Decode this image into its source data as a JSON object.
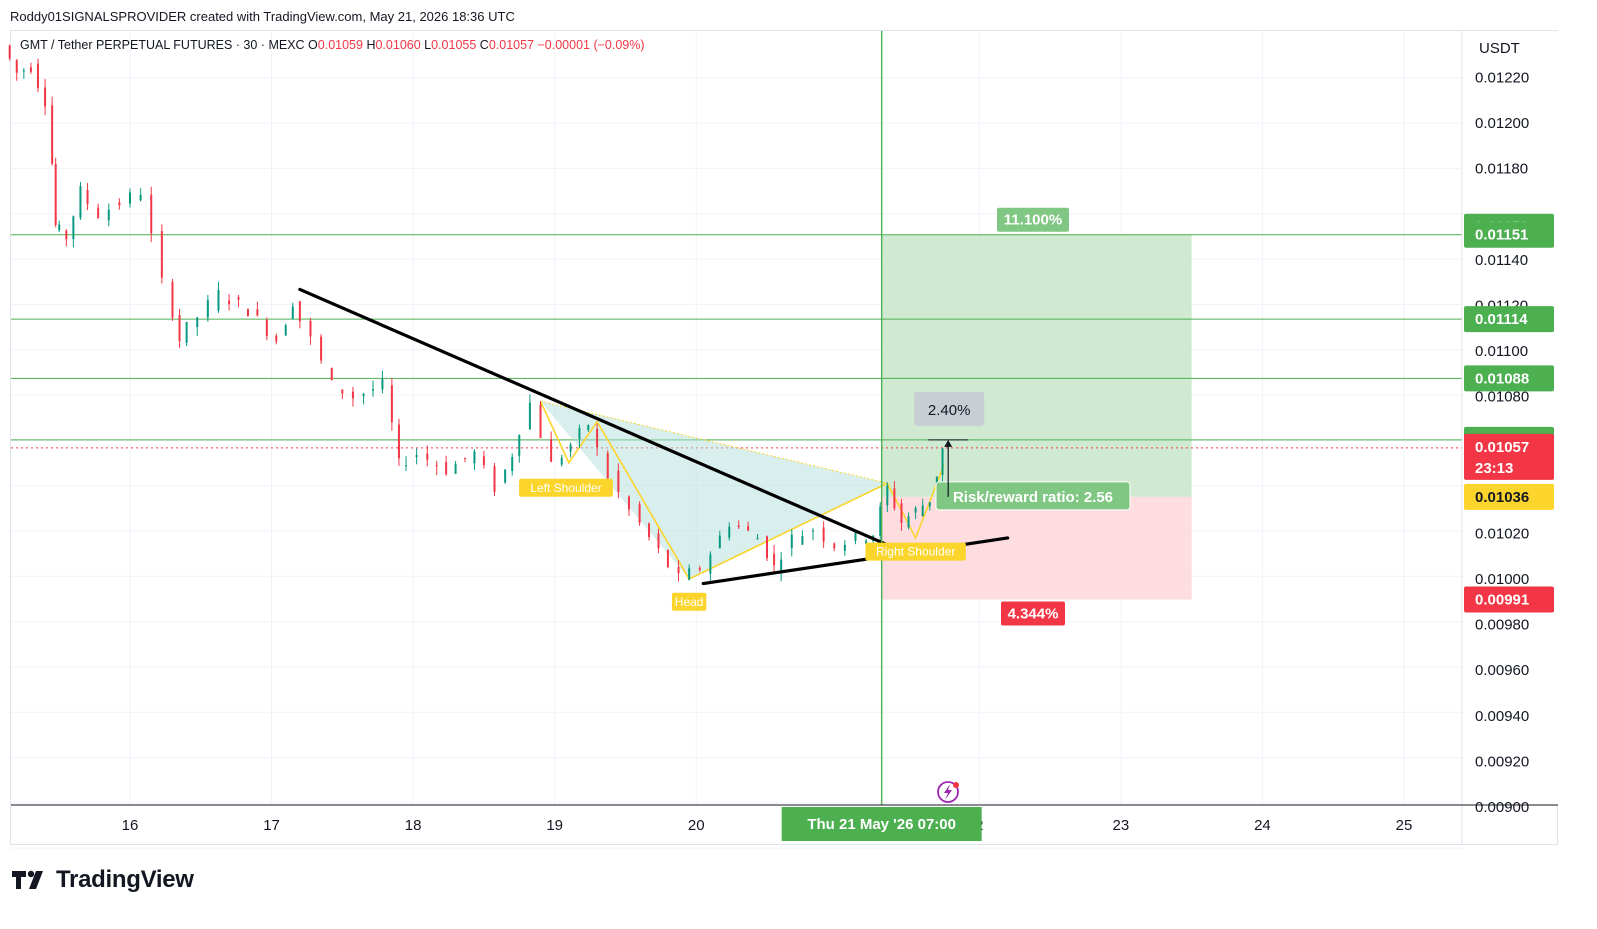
{
  "header": {
    "credit": "Roddy01SIGNALSPROVIDER created with TradingView.com, May 21, 2026 18:36 UTC"
  },
  "symbol": {
    "name": "GMT / Tether PERPETUAL FUTURES · 30 · MEXC",
    "o_label": "O",
    "o": "0.01059",
    "h_label": "H",
    "h": "0.01060",
    "l_label": "L",
    "l": "0.01055",
    "c_label": "C",
    "c": "0.01057",
    "change": "−0.00001 (−0.09%)"
  },
  "colors": {
    "up": "#089981",
    "down": "#f23645",
    "green_line": "#4caf50",
    "gold": "#fbd52c",
    "profit_zone": "#c8e6c9",
    "loss_zone": "#fdd7db"
  },
  "chart_data": {
    "type": "line",
    "title": "",
    "xlabel": "",
    "ylabel": "",
    "currency": "USDT",
    "ylim": [
      0.009,
      0.01235
    ],
    "x_ticks": [
      {
        "label": "16",
        "day": 16
      },
      {
        "label": "17",
        "day": 17
      },
      {
        "label": "18",
        "day": 18
      },
      {
        "label": "19",
        "day": 19
      },
      {
        "label": "20",
        "day": 20
      },
      {
        "label": "2",
        "day": 22
      },
      {
        "label": "23",
        "day": 23
      },
      {
        "label": "24",
        "day": 24
      },
      {
        "label": "25",
        "day": 25
      }
    ],
    "x_range_days": [
      15.15,
      25.4
    ],
    "y_ticks": [
      "0.01220",
      "0.01200",
      "0.01180",
      "0.01140",
      "0.01120",
      "0.01100",
      "0.01080",
      "0.01020",
      "0.01000",
      "0.00980",
      "0.00960",
      "0.00940",
      "0.00920",
      "0.00900"
    ],
    "crosshair": {
      "label": "Thu 21 May '26   07:00",
      "day": 21.31
    },
    "price_series": [
      {
        "day": 15.15,
        "price": 0.01234
      },
      {
        "day": 15.25,
        "price": 0.01222
      },
      {
        "day": 15.35,
        "price": 0.01225
      },
      {
        "day": 15.45,
        "price": 0.0121
      },
      {
        "day": 15.5,
        "price": 0.01155
      },
      {
        "day": 15.6,
        "price": 0.0115
      },
      {
        "day": 15.7,
        "price": 0.0117
      },
      {
        "day": 15.85,
        "price": 0.0116
      },
      {
        "day": 16.0,
        "price": 0.01165
      },
      {
        "day": 16.15,
        "price": 0.0117
      },
      {
        "day": 16.3,
        "price": 0.0113
      },
      {
        "day": 16.4,
        "price": 0.01105
      },
      {
        "day": 16.55,
        "price": 0.01115
      },
      {
        "day": 16.7,
        "price": 0.01125
      },
      {
        "day": 16.9,
        "price": 0.01118
      },
      {
        "day": 17.1,
        "price": 0.01105
      },
      {
        "day": 17.2,
        "price": 0.01122
      },
      {
        "day": 17.35,
        "price": 0.01105
      },
      {
        "day": 17.5,
        "price": 0.01085
      },
      {
        "day": 17.65,
        "price": 0.0108
      },
      {
        "day": 17.85,
        "price": 0.01085
      },
      {
        "day": 17.95,
        "price": 0.0105
      },
      {
        "day": 18.1,
        "price": 0.01055
      },
      {
        "day": 18.3,
        "price": 0.01048
      },
      {
        "day": 18.5,
        "price": 0.01055
      },
      {
        "day": 18.65,
        "price": 0.0104
      },
      {
        "day": 18.75,
        "price": 0.01055
      },
      {
        "day": 18.9,
        "price": 0.01077
      },
      {
        "day": 19.05,
        "price": 0.0105
      },
      {
        "day": 19.3,
        "price": 0.01068
      },
      {
        "day": 19.45,
        "price": 0.01045
      },
      {
        "day": 19.6,
        "price": 0.0103
      },
      {
        "day": 19.8,
        "price": 0.01012
      },
      {
        "day": 19.95,
        "price": 0.01
      },
      {
        "day": 20.1,
        "price": 0.01005
      },
      {
        "day": 20.3,
        "price": 0.01025
      },
      {
        "day": 20.5,
        "price": 0.01018
      },
      {
        "day": 20.6,
        "price": 0.01005
      },
      {
        "day": 20.75,
        "price": 0.01018
      },
      {
        "day": 20.9,
        "price": 0.01022
      },
      {
        "day": 21.05,
        "price": 0.01015
      },
      {
        "day": 21.2,
        "price": 0.01018
      },
      {
        "day": 21.3,
        "price": 0.0102
      },
      {
        "day": 21.4,
        "price": 0.0104
      },
      {
        "day": 21.5,
        "price": 0.01025
      },
      {
        "day": 21.6,
        "price": 0.0103
      },
      {
        "day": 21.7,
        "price": 0.01035
      },
      {
        "day": 21.78,
        "price": 0.01057
      }
    ],
    "horizontal_lines": [
      0.01151,
      0.01114,
      0.01088,
      0.01061
    ],
    "price_tags": [
      {
        "label": "0.01151",
        "price": 0.011545,
        "color": "#4caf50"
      },
      {
        "label": "0.01151",
        "price": 0.01151,
        "color": "#4caf50"
      },
      {
        "label": "0.01114",
        "price": 0.01114,
        "color": "#4caf50"
      },
      {
        "label": "0.01088",
        "price": 0.01088,
        "color": "#4caf50"
      },
      {
        "label": "0.01061",
        "price": 0.01061,
        "color": "#4caf50"
      },
      {
        "label": "0.01057",
        "price": 0.010575,
        "color": "#f23645",
        "sub": "23:13"
      },
      {
        "label": "0.01036",
        "price": 0.01036,
        "color": "#fbd52c",
        "dark": true
      },
      {
        "label": "0.00991",
        "price": 0.00991,
        "color": "#f23645"
      }
    ],
    "trendlines": [
      {
        "from": [
          17.2,
          0.01127
        ],
        "to": [
          21.35,
          0.01015
        ]
      },
      {
        "from": [
          20.05,
          0.00998
        ],
        "to": [
          22.2,
          0.01018
        ]
      }
    ],
    "pattern": {
      "name": "head-and-shoulders",
      "points": [
        {
          "day": 18.9,
          "price": 0.01078
        },
        {
          "day": 19.1,
          "price": 0.01051
        },
        {
          "day": 19.3,
          "price": 0.01069
        },
        {
          "day": 19.95,
          "price": 0.01
        },
        {
          "day": 21.35,
          "price": 0.01042
        },
        {
          "day": 21.55,
          "price": 0.01018
        },
        {
          "day": 21.75,
          "price": 0.0105
        }
      ],
      "labels": [
        {
          "text": "Left Shoulder",
          "day": 19.08,
          "price": 0.0104
        },
        {
          "text": "Head",
          "day": 19.95,
          "price": 0.0099
        },
        {
          "text": "Right Shoulder",
          "day": 21.55,
          "price": 0.01012
        }
      ]
    },
    "position": {
      "start_day": 21.31,
      "end_day": 23.5,
      "entry": 0.01036,
      "target": 0.01151,
      "stop": 0.00991,
      "target_pct": "11.100%",
      "stop_pct": "4.344%",
      "rr_label": "Risk/reward ratio: 2.56"
    },
    "measure": {
      "label": "2.40%",
      "day": 21.78,
      "from_price": 0.01036,
      "to_price": 0.01061
    }
  },
  "footer": {
    "brand": "TradingView"
  }
}
